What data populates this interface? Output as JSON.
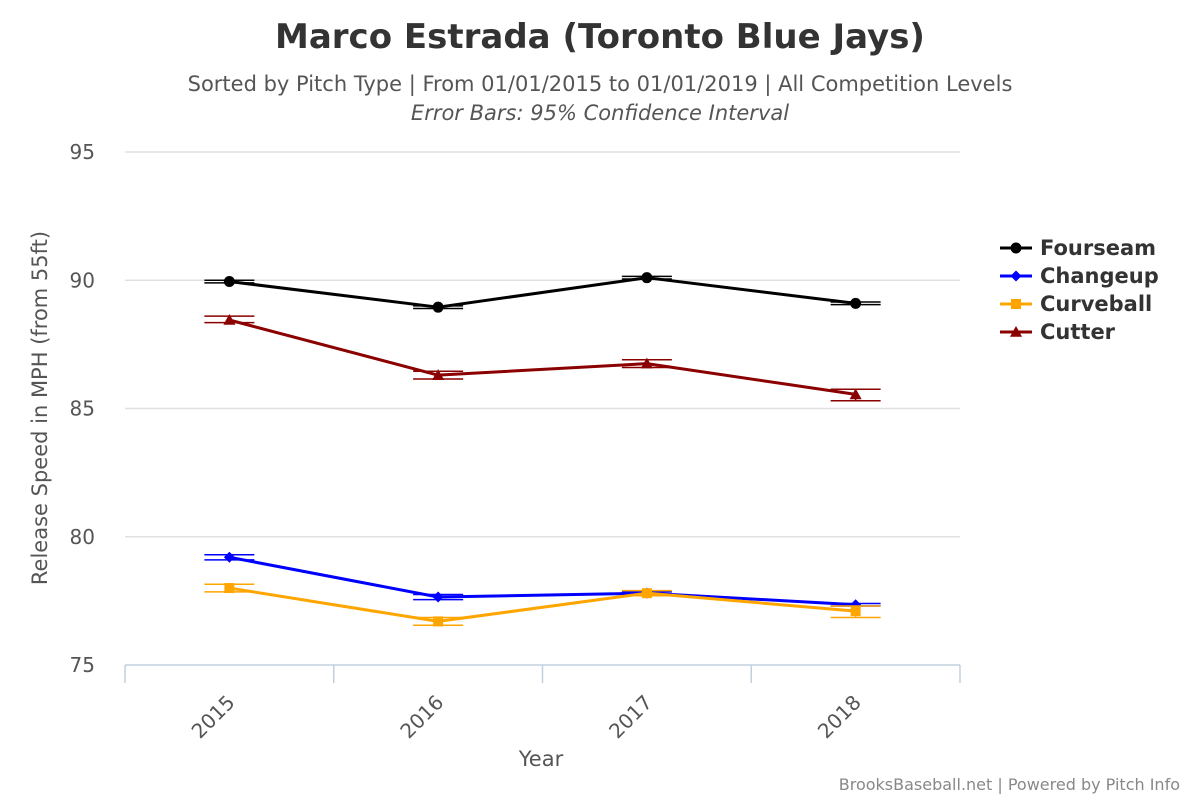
{
  "chart_data": {
    "type": "line",
    "title": "Marco Estrada (Toronto Blue Jays)",
    "subtitle": "Sorted by Pitch Type | From 01/01/2015 to 01/01/2019 | All Competition Levels",
    "subtitle2": "Error Bars: 95% Confidence Interval",
    "xlabel": "Year",
    "ylabel": "Release Speed in MPH (from 55ft)",
    "categories": [
      "2015",
      "2016",
      "2017",
      "2018"
    ],
    "ylim": [
      75,
      95
    ],
    "yticks": [
      75,
      80,
      85,
      90,
      95
    ],
    "grid": true,
    "legend_position": "right",
    "series": [
      {
        "name": "Fourseam",
        "color": "#000000",
        "marker": "circle",
        "values": [
          89.95,
          88.95,
          90.1,
          89.1
        ],
        "err_low": [
          89.9,
          88.9,
          90.05,
          89.05
        ],
        "err_high": [
          90.0,
          89.0,
          90.15,
          89.15
        ]
      },
      {
        "name": "Changeup",
        "color": "#0000ff",
        "marker": "diamond",
        "values": [
          79.2,
          77.65,
          77.8,
          77.35
        ],
        "err_low": [
          79.1,
          77.55,
          77.75,
          77.3
        ],
        "err_high": [
          79.3,
          77.75,
          77.85,
          77.4
        ]
      },
      {
        "name": "Curveball",
        "color": "#ffa500",
        "marker": "square",
        "values": [
          78.0,
          76.7,
          77.8,
          77.1
        ],
        "err_low": [
          77.85,
          76.55,
          77.7,
          76.85
        ],
        "err_high": [
          78.15,
          76.85,
          77.9,
          77.3
        ]
      },
      {
        "name": "Cutter",
        "color": "#8b0000",
        "marker": "triangle",
        "values": [
          88.45,
          86.3,
          86.75,
          85.55
        ],
        "err_low": [
          88.35,
          86.15,
          86.6,
          85.3
        ],
        "err_high": [
          88.6,
          86.45,
          86.9,
          85.75
        ]
      }
    ]
  },
  "credits": "BrooksBaseball.net | Powered by Pitch Info"
}
